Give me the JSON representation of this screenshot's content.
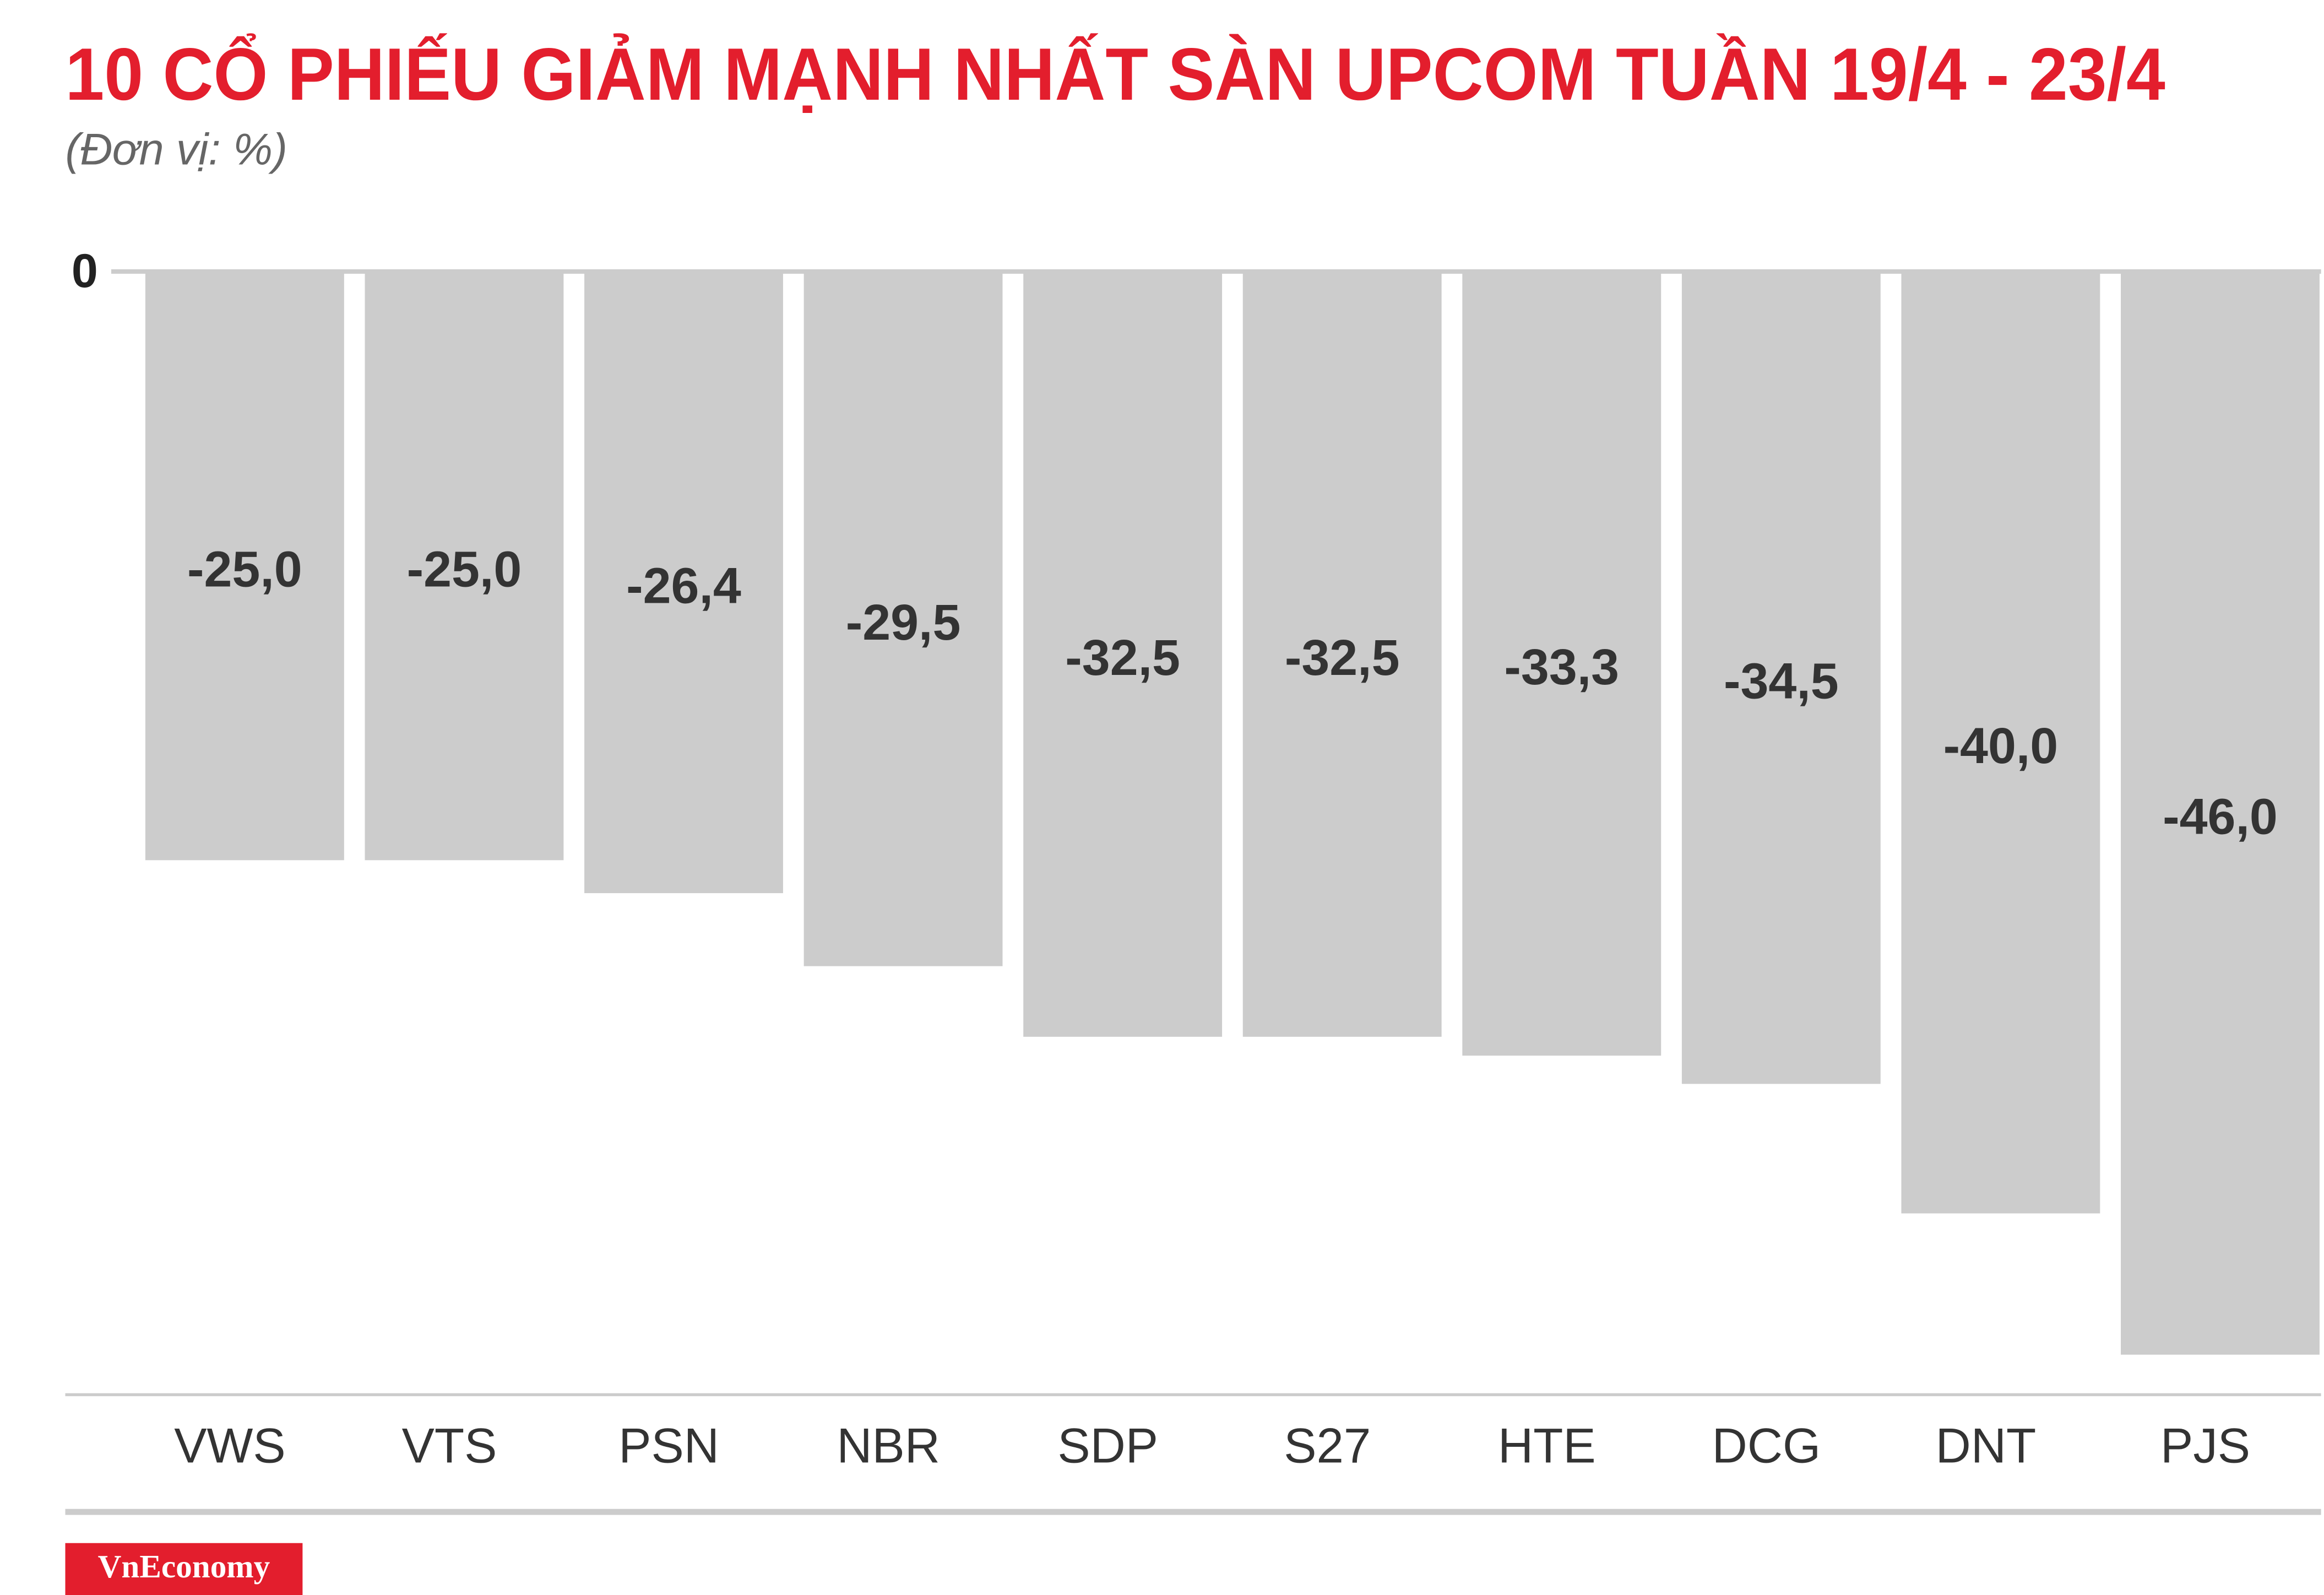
{
  "chart_data": {
    "type": "bar",
    "title": "10 CỔ PHIẾU GIẢM MẠNH NHẤT SÀN UPCOM TUẦN 19/4 - 23/4",
    "subtitle": "(Đơn vị: %)",
    "categories": [
      "VWS",
      "VTS",
      "PSN",
      "NBR",
      "SDP",
      "S27",
      "HTE",
      "DCG",
      "DNT",
      "PJS"
    ],
    "values": [
      -25.0,
      -25.0,
      -26.4,
      -29.5,
      -32.5,
      -32.5,
      -33.3,
      -34.5,
      -40.0,
      -46.0
    ],
    "value_labels": [
      "-25,0",
      "-25,0",
      "-26,4",
      "-29,5",
      "-32,5",
      "-32,5",
      "-33,3",
      "-34,5",
      "-40,0",
      "-46,0"
    ],
    "color": "#cccccc",
    "ylim": [
      -47.7,
      0
    ],
    "yticks": [
      0
    ]
  },
  "footer": {
    "brand": "VnEconomy"
  }
}
